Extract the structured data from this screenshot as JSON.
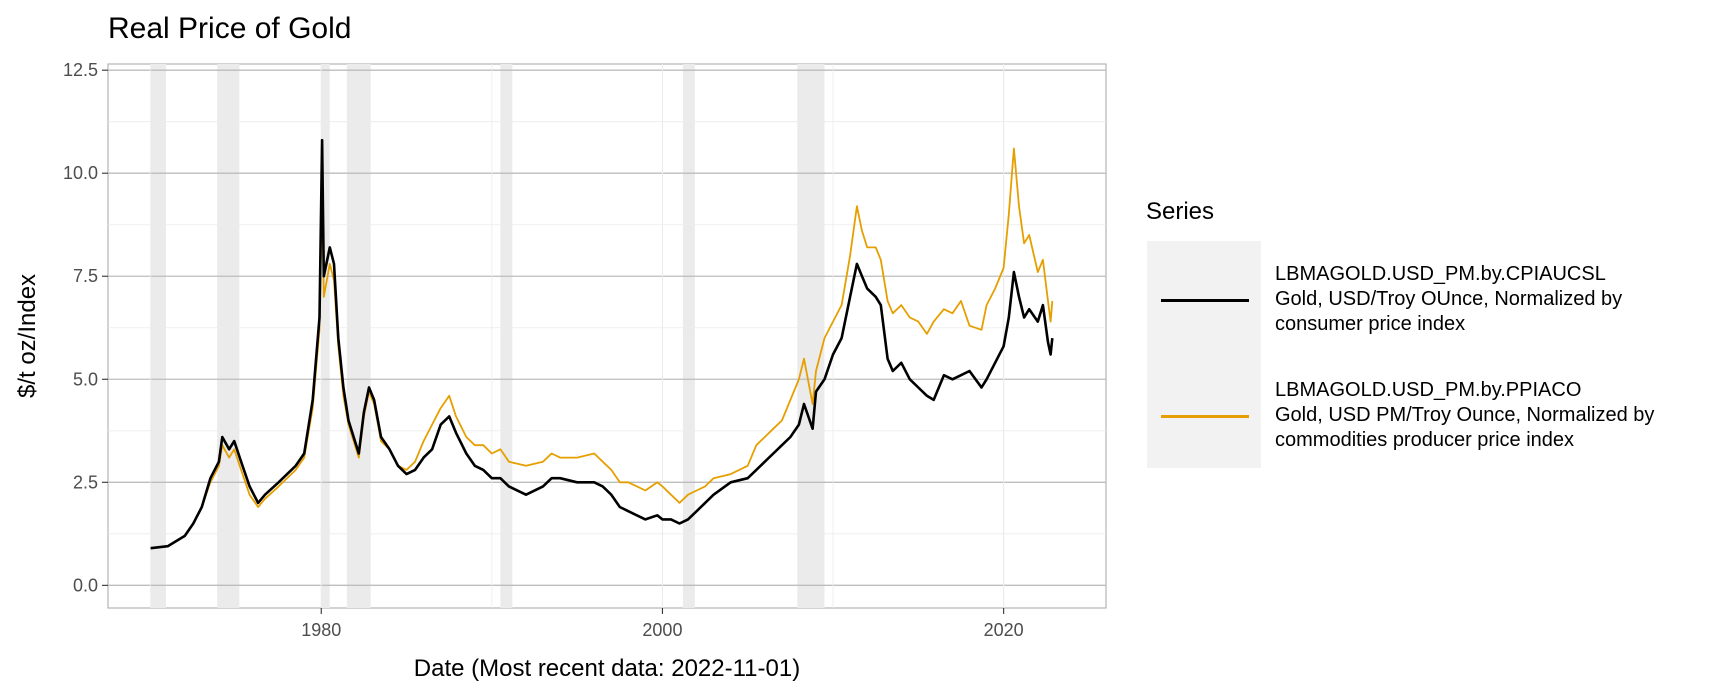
{
  "chart_data": {
    "type": "line",
    "title": "Real Price of Gold",
    "xlabel": "Date (Most recent data: 2022-11-01)",
    "ylabel": "$/t oz/Index",
    "xlim": [
      1967.5,
      2026.0
    ],
    "ylim": [
      -0.55,
      12.65
    ],
    "x_ticks": [
      1980,
      2000,
      2020
    ],
    "x_tick_labels": [
      "1980",
      "2000",
      "2020"
    ],
    "y_ticks": [
      0,
      2.5,
      5,
      7.5,
      10,
      12.5
    ],
    "y_tick_labels": [
      "0.0",
      "2.5",
      "5.0",
      "7.5",
      "10.0",
      "12.5"
    ],
    "grid": true,
    "legend_position": "right",
    "legend_title": "Series",
    "recession_bands": [
      [
        1970.0,
        1970.9
      ],
      [
        1973.9,
        1975.2
      ],
      [
        1980.0,
        1980.5
      ],
      [
        1981.5,
        1982.9
      ],
      [
        1990.5,
        1991.2
      ],
      [
        2001.2,
        2001.9
      ],
      [
        2007.9,
        2009.5
      ]
    ],
    "series": [
      {
        "name": "LBMAGOLD.USD_PM.by.CPIAUCSL",
        "legend_lines": [
          "LBMAGOLD.USD_PM.by.CPIAUCSL",
          "Gold, USD/Troy OUnce, Normalized by",
          "consumer price index"
        ],
        "color": "#000000",
        "x": [
          1970.0,
          1971.0,
          1972.0,
          1972.5,
          1973.0,
          1973.5,
          1974.0,
          1974.2,
          1974.6,
          1974.9,
          1975.3,
          1975.8,
          1976.3,
          1976.7,
          1977.5,
          1978.5,
          1979.0,
          1979.5,
          1979.9,
          1980.05,
          1980.15,
          1980.5,
          1980.75,
          1981.0,
          1981.3,
          1981.6,
          1982.2,
          1982.5,
          1982.8,
          1983.1,
          1983.5,
          1984.0,
          1984.5,
          1985.0,
          1985.5,
          1986.0,
          1986.5,
          1987.0,
          1987.5,
          1987.9,
          1988.5,
          1989.0,
          1989.5,
          1990.0,
          1990.5,
          1991.0,
          1992.0,
          1993.0,
          1993.5,
          1994.0,
          1995.0,
          1996.0,
          1996.5,
          1997.0,
          1997.5,
          1998.0,
          1999.0,
          1999.7,
          2000.0,
          2000.5,
          2001.0,
          2001.5,
          2002.0,
          2002.5,
          2003.0,
          2004.0,
          2005.0,
          2005.5,
          2006.0,
          2006.5,
          2007.0,
          2007.5,
          2008.0,
          2008.3,
          2008.8,
          2009.0,
          2009.5,
          2010.0,
          2010.5,
          2011.0,
          2011.4,
          2011.7,
          2012.0,
          2012.5,
          2012.8,
          2013.2,
          2013.5,
          2014.0,
          2014.5,
          2015.0,
          2015.5,
          2015.9,
          2016.5,
          2017.0,
          2017.5,
          2018.0,
          2018.7,
          2019.0,
          2019.5,
          2020.0,
          2020.3,
          2020.6,
          2020.9,
          2021.2,
          2021.5,
          2022.0,
          2022.3,
          2022.6,
          2022.75,
          2022.85
        ],
        "values": [
          0.9,
          0.95,
          1.2,
          1.5,
          1.9,
          2.6,
          3.0,
          3.6,
          3.3,
          3.5,
          3.0,
          2.4,
          2.0,
          2.2,
          2.5,
          2.9,
          3.2,
          4.5,
          6.5,
          10.8,
          7.5,
          8.2,
          7.8,
          6.0,
          4.8,
          4.0,
          3.2,
          4.2,
          4.8,
          4.5,
          3.6,
          3.3,
          2.9,
          2.7,
          2.8,
          3.1,
          3.3,
          3.9,
          4.1,
          3.7,
          3.2,
          2.9,
          2.8,
          2.6,
          2.6,
          2.4,
          2.2,
          2.4,
          2.6,
          2.6,
          2.5,
          2.5,
          2.4,
          2.2,
          1.9,
          1.8,
          1.6,
          1.7,
          1.6,
          1.6,
          1.5,
          1.6,
          1.8,
          2.0,
          2.2,
          2.5,
          2.6,
          2.8,
          3.0,
          3.2,
          3.4,
          3.6,
          3.9,
          4.4,
          3.8,
          4.7,
          5.0,
          5.6,
          6.0,
          7.0,
          7.8,
          7.5,
          7.2,
          7.0,
          6.8,
          5.5,
          5.2,
          5.4,
          5.0,
          4.8,
          4.6,
          4.5,
          5.1,
          5.0,
          5.1,
          5.2,
          4.8,
          5.0,
          5.4,
          5.8,
          6.5,
          7.6,
          7.0,
          6.5,
          6.7,
          6.4,
          6.8,
          5.9,
          5.6,
          6.0
        ]
      },
      {
        "name": "LBMAGOLD.USD_PM.by.PPIACO",
        "legend_lines": [
          "LBMAGOLD.USD_PM.by.PPIACO",
          "Gold, USD PM/Troy Ounce, Normalized by",
          "commodities producer price index"
        ],
        "color": "#E69F00",
        "x": [
          1970.0,
          1971.0,
          1972.0,
          1972.5,
          1973.0,
          1973.5,
          1974.0,
          1974.2,
          1974.6,
          1974.9,
          1975.3,
          1975.8,
          1976.3,
          1976.7,
          1977.5,
          1978.5,
          1979.0,
          1979.5,
          1979.9,
          1980.05,
          1980.15,
          1980.5,
          1980.75,
          1981.0,
          1981.3,
          1981.6,
          1982.2,
          1982.5,
          1982.8,
          1983.1,
          1983.5,
          1984.0,
          1984.5,
          1985.0,
          1985.5,
          1986.0,
          1986.5,
          1987.0,
          1987.5,
          1987.9,
          1988.5,
          1989.0,
          1989.5,
          1990.0,
          1990.5,
          1991.0,
          1992.0,
          1993.0,
          1993.5,
          1994.0,
          1995.0,
          1996.0,
          1996.5,
          1997.0,
          1997.5,
          1998.0,
          1999.0,
          1999.7,
          2000.0,
          2000.5,
          2001.0,
          2001.5,
          2002.0,
          2002.5,
          2003.0,
          2004.0,
          2005.0,
          2005.5,
          2006.0,
          2006.5,
          2007.0,
          2007.5,
          2008.0,
          2008.3,
          2008.8,
          2009.0,
          2009.5,
          2010.0,
          2010.5,
          2011.0,
          2011.4,
          2011.7,
          2012.0,
          2012.5,
          2012.8,
          2013.2,
          2013.5,
          2014.0,
          2014.5,
          2015.0,
          2015.5,
          2015.9,
          2016.5,
          2017.0,
          2017.5,
          2018.0,
          2018.7,
          2019.0,
          2019.5,
          2020.0,
          2020.3,
          2020.6,
          2020.9,
          2021.2,
          2021.5,
          2022.0,
          2022.3,
          2022.6,
          2022.75,
          2022.85
        ],
        "values": [
          0.9,
          0.95,
          1.2,
          1.5,
          1.9,
          2.5,
          2.9,
          3.4,
          3.1,
          3.3,
          2.8,
          2.2,
          1.9,
          2.1,
          2.4,
          2.8,
          3.1,
          4.3,
          6.2,
          9.8,
          7.0,
          7.8,
          7.4,
          5.8,
          4.6,
          3.9,
          3.1,
          4.1,
          4.7,
          4.4,
          3.5,
          3.3,
          2.9,
          2.8,
          3.0,
          3.5,
          3.9,
          4.3,
          4.6,
          4.1,
          3.6,
          3.4,
          3.4,
          3.2,
          3.3,
          3.0,
          2.9,
          3.0,
          3.2,
          3.1,
          3.1,
          3.2,
          3.0,
          2.8,
          2.5,
          2.5,
          2.3,
          2.5,
          2.4,
          2.2,
          2.0,
          2.2,
          2.3,
          2.4,
          2.6,
          2.7,
          2.9,
          3.4,
          3.6,
          3.8,
          4.0,
          4.5,
          5.0,
          5.5,
          4.4,
          5.2,
          6.0,
          6.4,
          6.8,
          8.0,
          9.2,
          8.6,
          8.2,
          8.2,
          7.9,
          6.9,
          6.6,
          6.8,
          6.5,
          6.4,
          6.1,
          6.4,
          6.7,
          6.6,
          6.9,
          6.3,
          6.2,
          6.8,
          7.2,
          7.7,
          9.0,
          10.6,
          9.2,
          8.3,
          8.5,
          7.6,
          7.9,
          6.9,
          6.4,
          6.9
        ]
      }
    ]
  }
}
